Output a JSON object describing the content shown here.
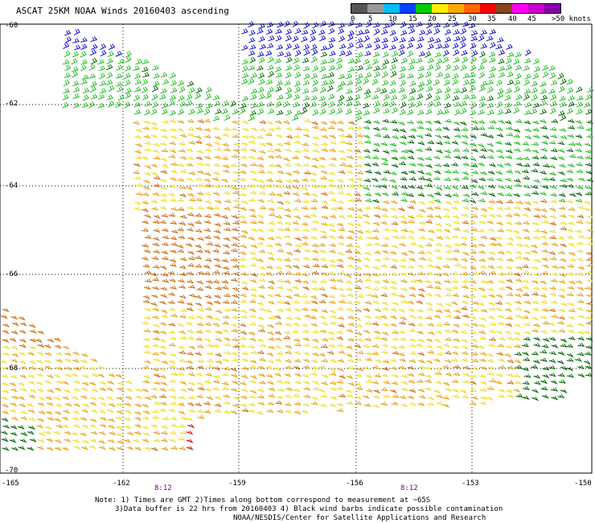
{
  "title": "ASCAT 25KM NOAA Winds 20160403 ascending",
  "legend": {
    "labels": [
      "0",
      "5",
      "10",
      "15",
      "20",
      "25",
      "30",
      "35",
      "40",
      "45",
      ">50 knots"
    ],
    "colors": [
      "#555555",
      "#999999",
      "#00bfff",
      "#0044ff",
      "#00cc00",
      "#ffee00",
      "#ffaa00",
      "#ff6600",
      "#ff0000",
      "#884422",
      "#ff00ff",
      "#cc00cc",
      "#8800aa"
    ]
  },
  "axes": {
    "lat_labels": [
      "-60",
      "-62",
      "-64",
      "-66",
      "-68",
      "-70"
    ],
    "lon_labels": [
      "-165",
      "-162",
      "-159",
      "-156",
      "-153",
      "-150"
    ]
  },
  "time_marks": [
    "8:12",
    "8:12"
  ],
  "notes": {
    "line1": "Note: 1) Times are GMT 2)Times along bottom correspond to measurement at ~65S",
    "line2": "3)Data buffer is 22 hrs from 20160403 4) Black wind barbs indicate possible contamination",
    "line3": "NOAA/NESDIS/Center for Satellite Applications and Research"
  },
  "wind_colors": {
    "blue": "#1010cc",
    "green": "#22bb22",
    "dark_green": "#006600",
    "yellow": "#eedd22",
    "orange": "#e8a010",
    "dark_orange": "#cc6a10",
    "red": "#cc1010"
  }
}
